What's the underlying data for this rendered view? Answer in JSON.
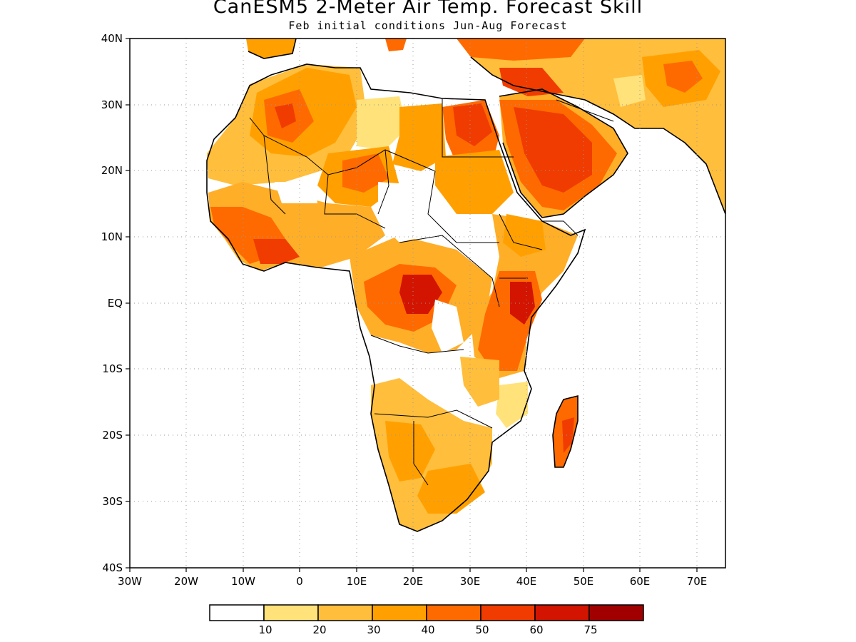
{
  "title": "CanESM5 2-Meter Air Temp. Forecast Skill",
  "subtitle": "Feb initial conditions  Jun-Aug Forecast",
  "map": {
    "lat_labels": [
      "40N",
      "30N",
      "20N",
      "10N",
      "EQ",
      "10S",
      "20S",
      "30S",
      "40S"
    ],
    "lon_labels": [
      "30W",
      "20W",
      "10W",
      "0",
      "10E",
      "20E",
      "30E",
      "40E",
      "50E",
      "60E",
      "70E"
    ],
    "extent": {
      "lon": [
        -30,
        75
      ],
      "lat": [
        -40,
        40
      ]
    },
    "gridlines": "dotted"
  },
  "legend": {
    "labels": [
      "10",
      "20",
      "30",
      "40",
      "50",
      "60",
      "75"
    ],
    "colors": [
      "#ffffff",
      "#ffe27a",
      "#ffbe3c",
      "#ffa000",
      "#ff6a00",
      "#f03c00",
      "#d21400",
      "#a00000"
    ]
  }
}
